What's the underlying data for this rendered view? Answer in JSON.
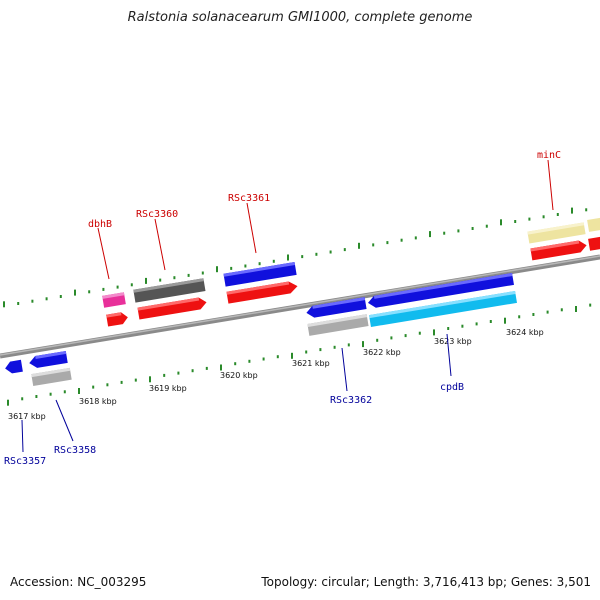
{
  "title": "Ralstonia solanacearum GMI1000, complete genome",
  "footer": {
    "accession": "Accession: NC_003295",
    "stats": "Topology: circular; Length: 3,716,413 bp; Genes: 3,501"
  },
  "colors": {
    "forward_label": "#cc0000",
    "reverse_label": "#00009a",
    "tick": "#2a8a2a",
    "backbone": "#8a8a8a"
  },
  "kbp_labels": [
    "3617 kbp",
    "3618 kbp",
    "3619 kbp",
    "3620 kbp",
    "3621 kbp",
    "3622 kbp",
    "3623 kbp",
    "3624 kbp"
  ],
  "gene_labels": {
    "forward": [
      "dbhB",
      "RSc3360",
      "RSc3361",
      "minC"
    ],
    "reverse": [
      "RSc3357",
      "RSc3358",
      "RSc3362",
      "cpdB"
    ]
  }
}
